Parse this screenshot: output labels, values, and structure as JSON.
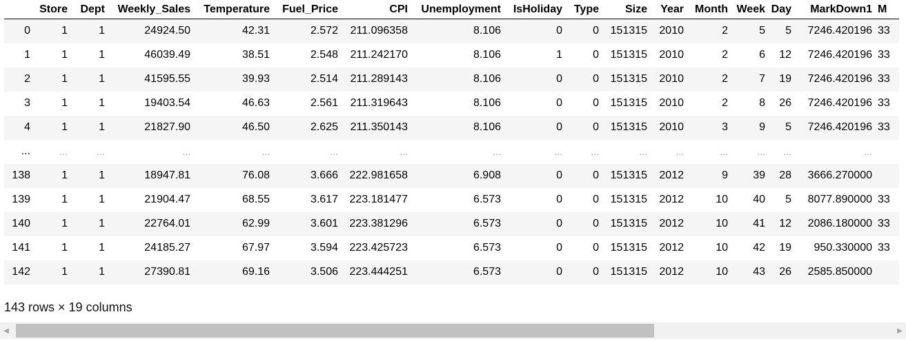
{
  "table": {
    "columns": [
      "",
      "Store",
      "Dept",
      "Weekly_Sales",
      "Temperature",
      "Fuel_Price",
      "CPI",
      "Unemployment",
      "IsHoliday",
      "Type",
      "Size",
      "Year",
      "Month",
      "Week",
      "Day",
      "MarkDown1",
      "M"
    ],
    "rows": [
      [
        "0",
        "1",
        "1",
        "24924.50",
        "42.31",
        "2.572",
        "211.096358",
        "8.106",
        "0",
        "0",
        "151315",
        "2010",
        "2",
        "5",
        "5",
        "7246.420196",
        "33"
      ],
      [
        "1",
        "1",
        "1",
        "46039.49",
        "38.51",
        "2.548",
        "211.242170",
        "8.106",
        "1",
        "0",
        "151315",
        "2010",
        "2",
        "6",
        "12",
        "7246.420196",
        "33"
      ],
      [
        "2",
        "1",
        "1",
        "41595.55",
        "39.93",
        "2.514",
        "211.289143",
        "8.106",
        "0",
        "0",
        "151315",
        "2010",
        "2",
        "7",
        "19",
        "7246.420196",
        "33"
      ],
      [
        "3",
        "1",
        "1",
        "19403.54",
        "46.63",
        "2.561",
        "211.319643",
        "8.106",
        "0",
        "0",
        "151315",
        "2010",
        "2",
        "8",
        "26",
        "7246.420196",
        "33"
      ],
      [
        "4",
        "1",
        "1",
        "21827.90",
        "46.50",
        "2.625",
        "211.350143",
        "8.106",
        "0",
        "0",
        "151315",
        "2010",
        "3",
        "9",
        "5",
        "7246.420196",
        "33"
      ],
      [
        "...",
        "...",
        "...",
        "...",
        "...",
        "...",
        "...",
        "...",
        "...",
        "...",
        "...",
        "...",
        "...",
        "...",
        "...",
        "...",
        ""
      ],
      [
        "138",
        "1",
        "1",
        "18947.81",
        "76.08",
        "3.666",
        "222.981658",
        "6.908",
        "0",
        "0",
        "151315",
        "2012",
        "9",
        "39",
        "28",
        "3666.270000",
        ""
      ],
      [
        "139",
        "1",
        "1",
        "21904.47",
        "68.55",
        "3.617",
        "223.181477",
        "6.573",
        "0",
        "0",
        "151315",
        "2012",
        "10",
        "40",
        "5",
        "8077.890000",
        "33"
      ],
      [
        "140",
        "1",
        "1",
        "22764.01",
        "62.99",
        "3.601",
        "223.381296",
        "6.573",
        "0",
        "0",
        "151315",
        "2012",
        "10",
        "41",
        "12",
        "2086.180000",
        "33"
      ],
      [
        "141",
        "1",
        "1",
        "24185.27",
        "67.97",
        "3.594",
        "223.425723",
        "6.573",
        "0",
        "0",
        "151315",
        "2012",
        "10",
        "42",
        "19",
        "950.330000",
        "33"
      ],
      [
        "142",
        "1",
        "1",
        "27390.81",
        "69.16",
        "3.506",
        "223.444251",
        "6.573",
        "0",
        "0",
        "151315",
        "2012",
        "10",
        "43",
        "26",
        "2585.850000",
        ""
      ]
    ],
    "summary": "143 rows × 19 columns"
  },
  "scrollbar": {
    "left_arrow": "◀",
    "right_arrow": "▶",
    "thumb_fraction": 0.73
  }
}
